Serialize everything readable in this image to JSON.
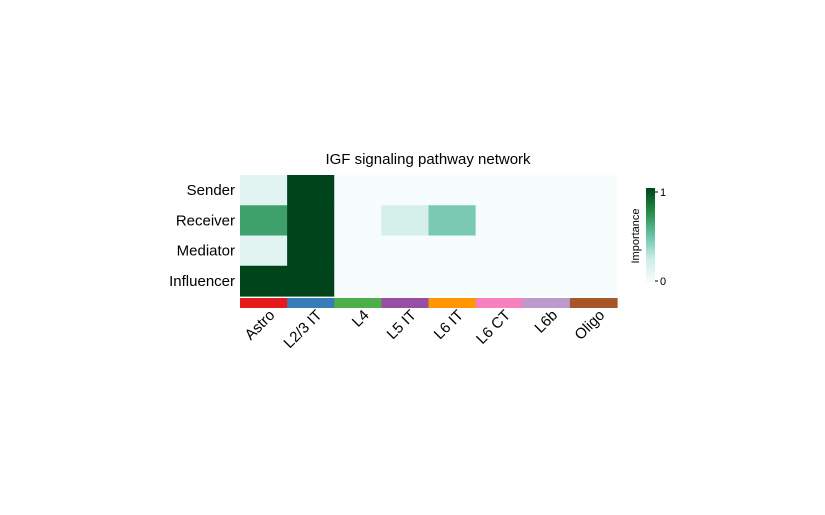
{
  "chart_data": {
    "type": "heatmap",
    "title": "IGF signaling pathway network",
    "rows": [
      "Sender",
      "Receiver",
      "Mediator",
      "Influencer"
    ],
    "columns": [
      "Astro",
      "L2/3 IT",
      "L4",
      "L5 IT",
      "L6 IT",
      "L6 CT",
      "L6b",
      "Oligo"
    ],
    "values": [
      [
        0.12,
        1.0,
        0.0,
        0.0,
        0.0,
        0.0,
        0.0,
        0.0
      ],
      [
        0.65,
        1.0,
        0.0,
        0.2,
        0.45,
        0.0,
        0.0,
        0.0
      ],
      [
        0.12,
        1.0,
        0.0,
        0.0,
        0.0,
        0.0,
        0.0,
        0.0
      ],
      [
        1.0,
        1.0,
        0.0,
        0.0,
        0.0,
        0.0,
        0.0,
        0.0
      ]
    ],
    "column_colors": [
      "#E41A1C",
      "#377EB8",
      "#4DAF4A",
      "#984EA3",
      "#FF9500",
      "#F781BF",
      "#BC9BCC",
      "#A65628"
    ],
    "colormap": [
      "#F7FCFD",
      "#CCECE6",
      "#66C2A4",
      "#238B45",
      "#00441B"
    ],
    "legend": {
      "title": "Importance",
      "min_label": "0",
      "max_label": "1",
      "range": [
        0,
        1
      ]
    }
  }
}
